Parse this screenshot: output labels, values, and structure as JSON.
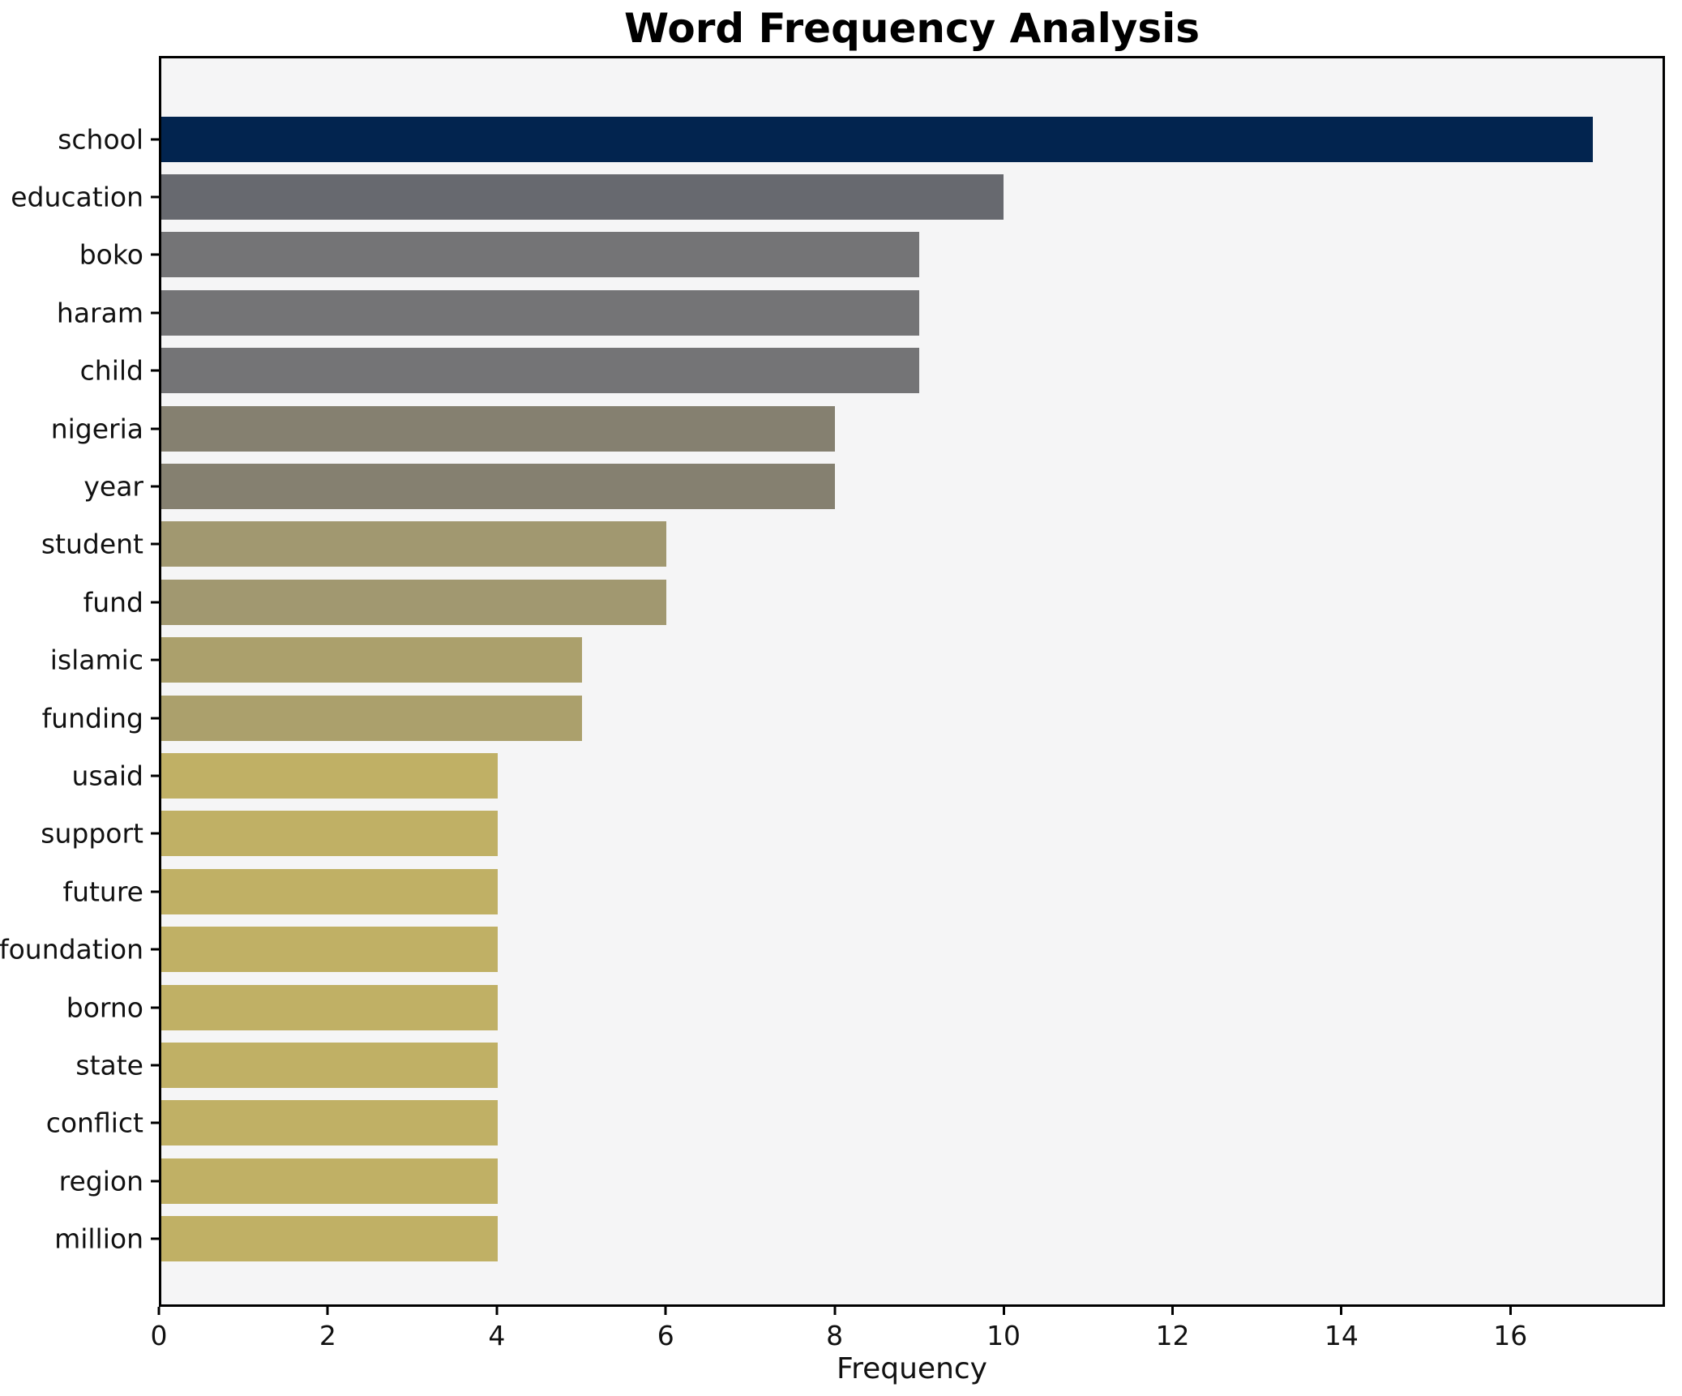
{
  "title": "Word Frequency Analysis",
  "chart_data": {
    "type": "bar",
    "orientation": "horizontal",
    "title": "Word Frequency Analysis",
    "xlabel": "Frequency",
    "ylabel": "",
    "xlim": [
      0,
      17.83
    ],
    "x_ticks": [
      0,
      2,
      4,
      6,
      8,
      10,
      12,
      14,
      16
    ],
    "grid": false,
    "legend": false,
    "plot_background": "#f5f5f6",
    "spine_color": "#000000",
    "categories": [
      "school",
      "education",
      "boko",
      "haram",
      "child",
      "nigeria",
      "year",
      "student",
      "fund",
      "islamic",
      "funding",
      "usaid",
      "support",
      "future",
      "foundation",
      "borno",
      "state",
      "conflict",
      "region",
      "million"
    ],
    "values": [
      17,
      10,
      9,
      9,
      9,
      8,
      8,
      6,
      6,
      5,
      5,
      4,
      4,
      4,
      4,
      4,
      4,
      4,
      4,
      4
    ],
    "bar_colors": [
      "#02244f",
      "#67696f",
      "#747476",
      "#747476",
      "#747476",
      "#858070",
      "#858070",
      "#a19870",
      "#a19870",
      "#aba06c",
      "#aba06c",
      "#c0b065",
      "#c0b065",
      "#c0b065",
      "#c0b065",
      "#c0b065",
      "#c0b065",
      "#c0b065",
      "#c0b065",
      "#c0b065"
    ]
  }
}
